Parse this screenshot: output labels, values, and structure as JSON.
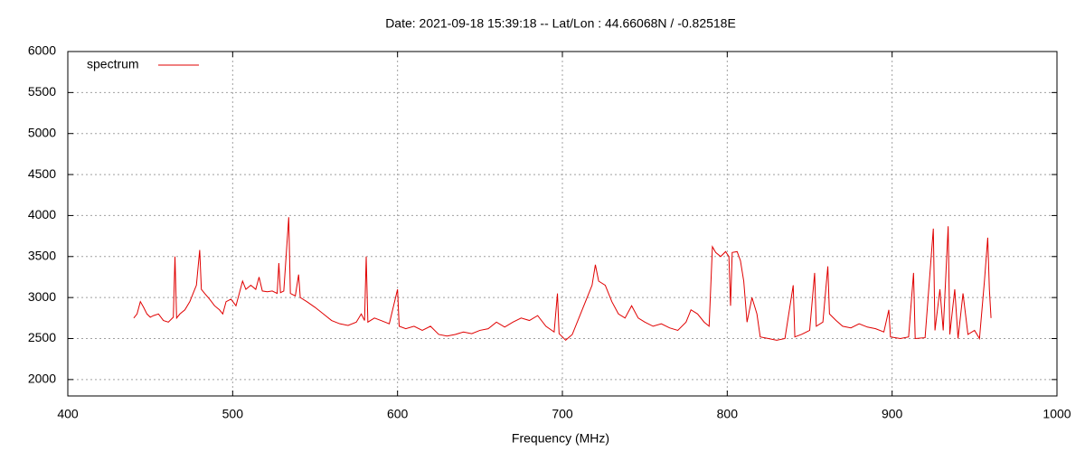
{
  "chart_data": {
    "type": "line",
    "title": "Date: 2021-09-18 15:39:18  --  Lat/Lon : 44.66068N / -0.82518E",
    "x_label": "Frequency (MHz)",
    "xlim": [
      400,
      1000
    ],
    "xticks": [
      400,
      500,
      600,
      700,
      800,
      900,
      1000
    ],
    "ylim": [
      1800,
      6000
    ],
    "yticks": [
      2000,
      2500,
      3000,
      3500,
      4000,
      4500,
      5000,
      5500,
      6000
    ],
    "grid": true,
    "legend": "top-left",
    "series": [
      {
        "name": "spectrum",
        "color": "#e00000",
        "x": [
          440,
          442,
          444,
          446,
          448,
          450,
          452,
          455,
          458,
          461,
          464,
          465,
          466,
          468,
          471,
          474,
          476,
          478,
          480,
          481,
          483,
          486,
          489,
          492,
          494,
          496,
          499,
          502,
          504,
          506,
          508,
          511,
          514,
          516,
          518,
          521,
          524,
          527,
          528,
          529,
          531,
          534,
          535,
          538,
          540,
          541,
          545,
          550,
          555,
          560,
          565,
          570,
          575,
          578,
          580,
          581,
          582,
          586,
          590,
          595,
          600,
          601,
          605,
          610,
          615,
          620,
          625,
          630,
          635,
          640,
          645,
          650,
          655,
          660,
          665,
          670,
          675,
          680,
          685,
          690,
          695,
          697,
          698,
          702,
          706,
          710,
          714,
          718,
          720,
          722,
          726,
          730,
          734,
          738,
          742,
          746,
          750,
          755,
          760,
          765,
          770,
          775,
          778,
          782,
          786,
          789,
          791,
          793,
          796,
          799,
          801,
          802,
          803,
          806,
          808,
          810,
          812,
          815,
          818,
          820,
          825,
          830,
          835,
          840,
          841,
          845,
          850,
          853,
          854,
          858,
          861,
          862,
          866,
          870,
          875,
          880,
          885,
          890,
          895,
          898,
          899,
          905,
          910,
          913,
          914,
          920,
          925,
          926,
          929,
          931,
          934,
          935,
          938,
          940,
          943,
          946,
          950,
          953,
          956,
          958,
          959,
          960
        ],
        "values": [
          2750,
          2800,
          2950,
          2880,
          2800,
          2760,
          2780,
          2800,
          2720,
          2700,
          2760,
          3500,
          2750,
          2800,
          2850,
          2950,
          3050,
          3150,
          3580,
          3100,
          3050,
          2980,
          2900,
          2850,
          2800,
          2950,
          2980,
          2900,
          3050,
          3200,
          3100,
          3150,
          3100,
          3250,
          3080,
          3070,
          3080,
          3050,
          3420,
          3060,
          3080,
          3980,
          3050,
          3020,
          3280,
          3000,
          2950,
          2880,
          2800,
          2720,
          2680,
          2660,
          2700,
          2800,
          2720,
          3500,
          2700,
          2750,
          2720,
          2680,
          3100,
          2650,
          2620,
          2650,
          2600,
          2650,
          2550,
          2530,
          2550,
          2580,
          2560,
          2600,
          2620,
          2700,
          2640,
          2700,
          2750,
          2720,
          2780,
          2650,
          2580,
          3050,
          2560,
          2480,
          2550,
          2750,
          2950,
          3150,
          3400,
          3200,
          3150,
          2950,
          2800,
          2750,
          2900,
          2750,
          2700,
          2650,
          2680,
          2630,
          2600,
          2700,
          2850,
          2800,
          2700,
          2650,
          3620,
          3550,
          3500,
          3560,
          3500,
          2900,
          3550,
          3560,
          3450,
          3200,
          2700,
          3000,
          2800,
          2520,
          2500,
          2480,
          2500,
          3150,
          2520,
          2550,
          2600,
          3300,
          2650,
          2700,
          3380,
          2800,
          2720,
          2650,
          2630,
          2680,
          2640,
          2620,
          2580,
          2850,
          2520,
          2500,
          2520,
          3300,
          2500,
          2510,
          3840,
          2600,
          3100,
          2600,
          3870,
          2550,
          3100,
          2500,
          3050,
          2550,
          2600,
          2500,
          3200,
          3730,
          3100,
          2750
        ]
      }
    ]
  }
}
